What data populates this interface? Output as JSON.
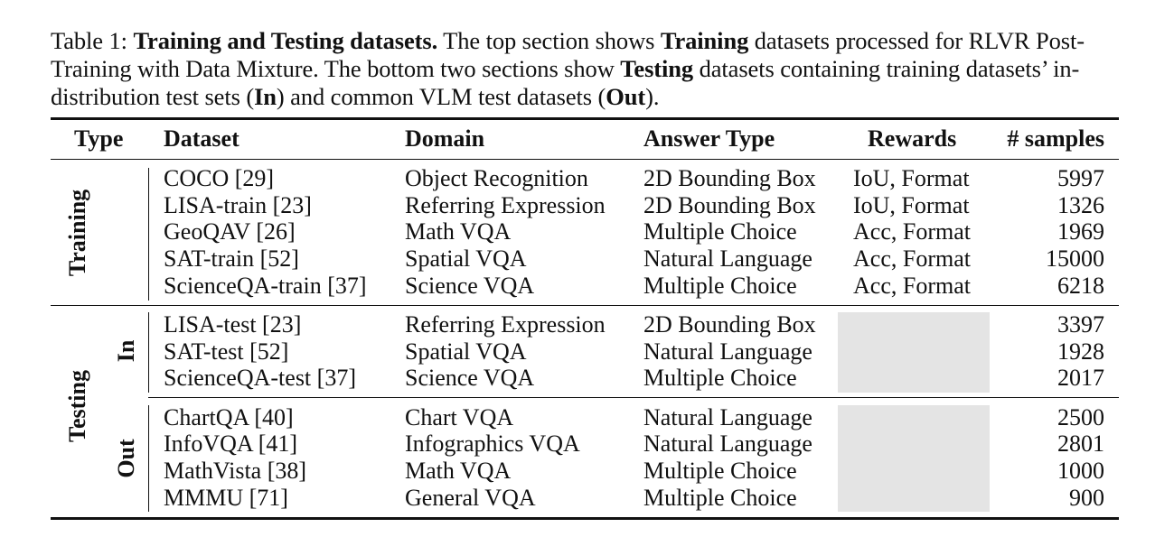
{
  "caption": {
    "prefix": "Table 1: ",
    "title": "Training and Testing datasets.",
    "s1": " The top section shows ",
    "b1": "Training",
    "s2": " datasets processed for RLVR Post-Training with Data Mixture. The bottom two sections show ",
    "b2": "Testing",
    "s3": " datasets containing training datasets’ in-distribution test sets (",
    "b3": "In",
    "s4": ") and common VLM test datasets (",
    "b4": "Out",
    "s5": ")."
  },
  "headers": {
    "type": "Type",
    "dataset": "Dataset",
    "domain": "Domain",
    "answer_type": "Answer Type",
    "rewards": "Rewards",
    "samples": "# samples"
  },
  "groups": {
    "training": "Training",
    "testing": "Testing",
    "in": "In",
    "out": "Out"
  },
  "training_rows": [
    {
      "dataset": "COCO [29]",
      "domain": "Object Recognition",
      "answer_type": "2D Bounding Box",
      "rewards": "IoU, Format",
      "samples": "5997"
    },
    {
      "dataset": "LISA-train [23]",
      "domain": "Referring Expression",
      "answer_type": "2D Bounding Box",
      "rewards": "IoU, Format",
      "samples": "1326"
    },
    {
      "dataset": "GeoQAV [26]",
      "domain": "Math VQA",
      "answer_type": "Multiple Choice",
      "rewards": "Acc, Format",
      "samples": "1969"
    },
    {
      "dataset": "SAT-train [52]",
      "domain": "Spatial VQA",
      "answer_type": "Natural Language",
      "rewards": "Acc, Format",
      "samples": "15000"
    },
    {
      "dataset": "ScienceQA-train [37]",
      "domain": "Science VQA",
      "answer_type": "Multiple Choice",
      "rewards": "Acc, Format",
      "samples": "6218"
    }
  ],
  "in_rows": [
    {
      "dataset": "LISA-test [23]",
      "domain": "Referring Expression",
      "answer_type": "2D Bounding Box",
      "samples": "3397"
    },
    {
      "dataset": "SAT-test [52]",
      "domain": "Spatial VQA",
      "answer_type": "Natural Language",
      "samples": "1928"
    },
    {
      "dataset": "ScienceQA-test [37]",
      "domain": "Science VQA",
      "answer_type": "Multiple Choice",
      "samples": "2017"
    }
  ],
  "out_rows": [
    {
      "dataset": "ChartQA [40]",
      "domain": "Chart VQA",
      "answer_type": "Natural Language",
      "samples": "2500"
    },
    {
      "dataset": "InfoVQA [41]",
      "domain": "Infographics VQA",
      "answer_type": "Natural Language",
      "samples": "2801"
    },
    {
      "dataset": "MathVista [38]",
      "domain": "Math VQA",
      "answer_type": "Multiple Choice",
      "samples": "1000"
    },
    {
      "dataset": "MMMU [71]",
      "domain": "General VQA",
      "answer_type": "Multiple Choice",
      "samples": "900"
    }
  ]
}
